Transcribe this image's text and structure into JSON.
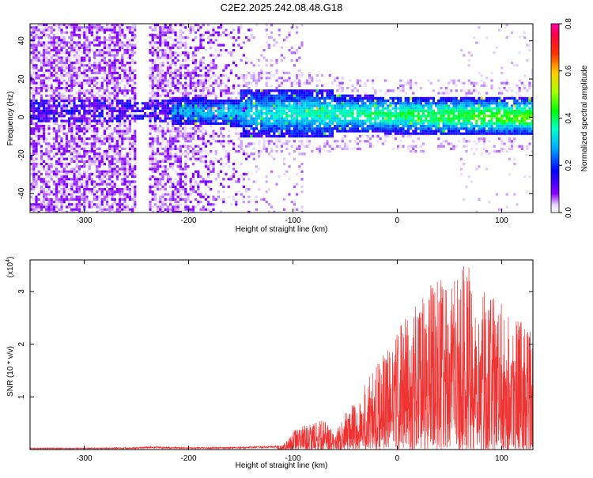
{
  "figure_title": "C2E2.2025.242.08.48.G18",
  "colors": {
    "snr_line": "#ee3333",
    "axis": "#000000",
    "background": "#ffffff"
  },
  "chart_data": [
    {
      "type": "heatmap",
      "title": "",
      "xlabel": "Height of straight line (km)",
      "ylabel": "Frequency (Hz)",
      "xlim": [
        -352,
        130
      ],
      "ylim": [
        -50,
        49
      ],
      "x_ticks": [
        -300,
        -200,
        -100,
        0,
        100
      ],
      "y_ticks": [
        -40,
        -20,
        0,
        20,
        40
      ],
      "grid": false,
      "colorbar": {
        "label": "Normalized spectral amplitude",
        "range": [
          0.0,
          0.8
        ],
        "ticks": [
          "0.0",
          "0.2",
          "0.4",
          "0.6",
          "0.8"
        ],
        "colormap": "rainbow (purple-blue-cyan-green-yellow-red-magenta)"
      },
      "features": {
        "noise_region_x": [
          -352,
          -140
        ],
        "data_gap_x": [
          -250,
          -238
        ],
        "signal_band_start_x": -215,
        "signal_center_freq_hz": 3,
        "signal_center_freq_at_end_hz": 0
      }
    },
    {
      "type": "line",
      "title": "",
      "xlabel": "Height of straight line (km)",
      "ylabel": "SNR (10 * v/v)",
      "y_multiplier_label": "(x10^4)",
      "xlim": [
        -352,
        130
      ],
      "ylim": [
        0,
        3.6
      ],
      "x_ticks": [
        -300,
        -200,
        -100,
        0,
        100
      ],
      "y_ticks": [
        1,
        2,
        3
      ],
      "grid": false,
      "series": [
        {
          "x": [
            -352,
            -300,
            -250,
            -240,
            -200,
            -150,
            -110,
            -100,
            -90,
            -80,
            -70,
            -60,
            -50,
            -40,
            -30,
            -20,
            -10,
            0,
            10,
            20,
            30,
            40,
            50,
            60,
            70,
            80,
            90,
            100,
            110,
            120,
            130
          ],
          "y_env": [
            0.03,
            0.03,
            0.04,
            0.06,
            0.04,
            0.05,
            0.08,
            0.35,
            0.45,
            0.5,
            0.58,
            0.3,
            0.7,
            0.9,
            1.3,
            1.7,
            1.9,
            2.3,
            2.6,
            2.9,
            3.1,
            3.3,
            3.0,
            3.5,
            3.55,
            3.2,
            2.9,
            2.8,
            2.6,
            2.5,
            2.2
          ]
        }
      ]
    }
  ]
}
